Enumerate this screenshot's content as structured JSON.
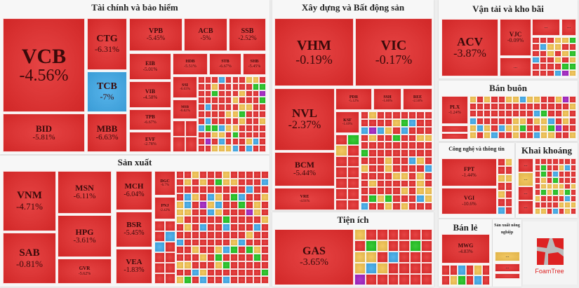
{
  "chart_data": {
    "type": "treemap",
    "color_legend": {
      "down": "#e32b2b",
      "reference": "#f2c14e",
      "floor": "#3fa9e8",
      "up": "#1fc21f",
      "ceiling": "#a020c0"
    },
    "ellipsis": "...",
    "sections": [
      {
        "title": "Tài chính và bảo hiểm",
        "tiles": [
          {
            "ticker": "VCB",
            "change": "-4.56%",
            "color": "down"
          },
          {
            "ticker": "BID",
            "change": "-5.81%",
            "color": "down"
          },
          {
            "ticker": "CTG",
            "change": "-6.31%",
            "color": "down"
          },
          {
            "ticker": "TCB",
            "change": "-7%",
            "color": "floor"
          },
          {
            "ticker": "MBB",
            "change": "-6.63%",
            "color": "down"
          },
          {
            "ticker": "VPB",
            "change": "-5.45%",
            "color": "down"
          },
          {
            "ticker": "ACB",
            "change": "-5%",
            "color": "down"
          },
          {
            "ticker": "SSB",
            "change": "-2.52%",
            "color": "down"
          },
          {
            "ticker": "EIB",
            "change": "-5.01%",
            "color": "down"
          },
          {
            "ticker": "VIB",
            "change": "-4.58%",
            "color": "down"
          },
          {
            "ticker": "TPB",
            "change": "-6.67%",
            "color": "down"
          },
          {
            "ticker": "EVF",
            "change": "-2.78%",
            "color": "down"
          },
          {
            "ticker": "HDB",
            "change": "-5.51%",
            "color": "down"
          },
          {
            "ticker": "STB",
            "change": "-6.67%",
            "color": "down"
          },
          {
            "ticker": "SHB",
            "change": "-5.45%",
            "color": "down"
          },
          {
            "ticker": "SSI",
            "change": "-6.03%",
            "color": "down"
          },
          {
            "ticker": "MSB",
            "change": "-6.82%",
            "color": "down"
          }
        ]
      },
      {
        "title": "Sản xuất",
        "tiles": [
          {
            "ticker": "VNM",
            "change": "-4.71%",
            "color": "down"
          },
          {
            "ticker": "SAB",
            "change": "-0.81%",
            "color": "down"
          },
          {
            "ticker": "MSN",
            "change": "-6.11%",
            "color": "down"
          },
          {
            "ticker": "HPG",
            "change": "-3.61%",
            "color": "down"
          },
          {
            "ticker": "GVR",
            "change": "-5.62%",
            "color": "down"
          },
          {
            "ticker": "MCH",
            "change": "-6.04%",
            "color": "down"
          },
          {
            "ticker": "BSR",
            "change": "-5.45%",
            "color": "down"
          },
          {
            "ticker": "VEA",
            "change": "-1.83%",
            "color": "down"
          },
          {
            "ticker": "DGC",
            "change": "-6.7%",
            "color": "down"
          },
          {
            "ticker": "PNJ",
            "change": "-2.42%",
            "color": "down"
          }
        ]
      },
      {
        "title": "Xây dựng và Bất động sản",
        "tiles": [
          {
            "ticker": "VHM",
            "change": "-0.19%",
            "color": "down"
          },
          {
            "ticker": "VIC",
            "change": "-0.17%",
            "color": "down"
          },
          {
            "ticker": "NVL",
            "change": "-2.37%",
            "color": "down"
          },
          {
            "ticker": "BCM",
            "change": "-5.44%",
            "color": "down"
          },
          {
            "ticker": "VRE",
            "change": "-4.91%",
            "color": "down"
          },
          {
            "ticker": "PDR",
            "change": "-5.12%",
            "color": "down"
          },
          {
            "ticker": "SSH",
            "change": "-1.86%",
            "color": "down"
          },
          {
            "ticker": "REE",
            "change": "-2.56%",
            "color": "down"
          },
          {
            "ticker": "KSF",
            "change": "-1.69%",
            "color": "down"
          }
        ]
      },
      {
        "title": "Tiện ích",
        "tiles": [
          {
            "ticker": "GAS",
            "change": "-3.65%",
            "color": "down"
          }
        ]
      },
      {
        "title": "Vận tải và kho bãi",
        "tiles": [
          {
            "ticker": "ACV",
            "change": "-3.87%",
            "color": "down"
          },
          {
            "ticker": "VJC",
            "change": "-0.09%",
            "color": "down"
          }
        ]
      },
      {
        "title": "Bán buôn",
        "tiles": [
          {
            "ticker": "PLX",
            "change": "-1.24%",
            "color": "down"
          }
        ]
      },
      {
        "title": "Công nghệ và thông tin",
        "tiles": [
          {
            "ticker": "FPT",
            "change": "-1.44%",
            "color": "down"
          },
          {
            "ticker": "VGI",
            "change": "-10.6%",
            "color": "down"
          }
        ]
      },
      {
        "title": "Khai khoáng",
        "tiles": []
      },
      {
        "title": "Bán lẻ",
        "tiles": [
          {
            "ticker": "MWG",
            "change": "-4.83%",
            "color": "down"
          }
        ]
      },
      {
        "title": "Sản xuất nông nghiệp",
        "tiles": []
      }
    ],
    "logo_text": "FoamTree"
  }
}
